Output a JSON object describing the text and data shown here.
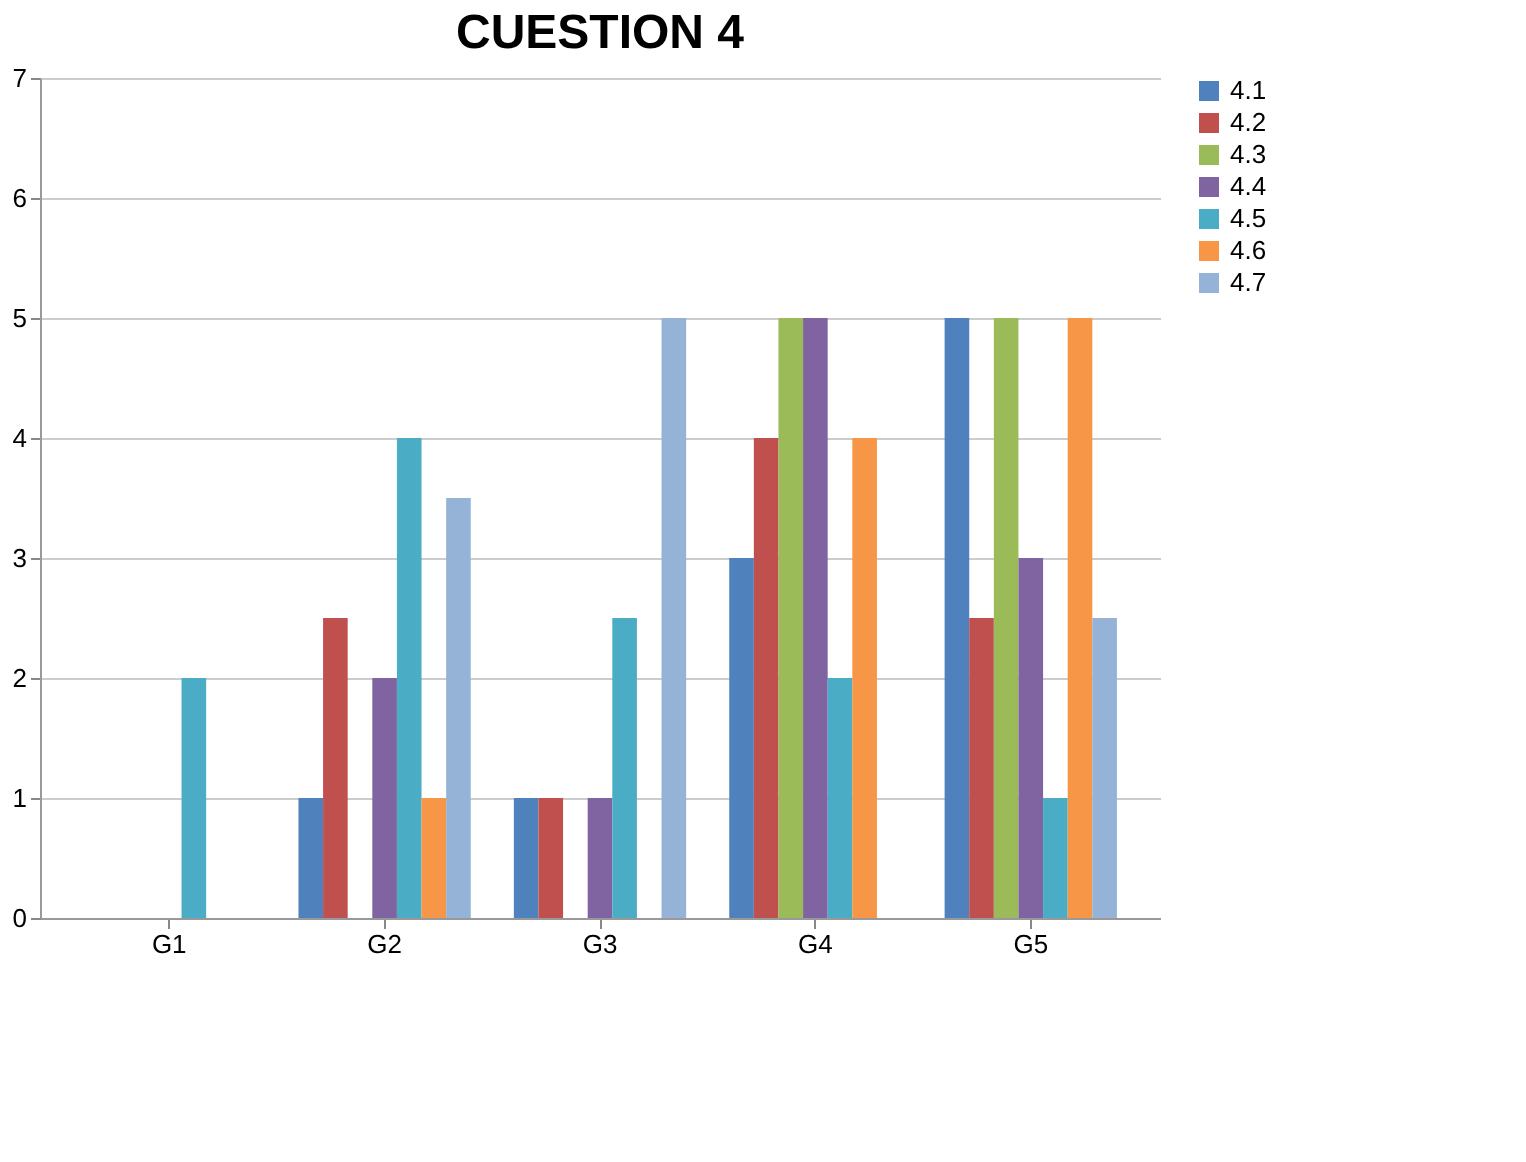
{
  "chart_data": {
    "type": "bar",
    "title": "CUESTION 4",
    "categories": [
      "G1",
      "G2",
      "G3",
      "G4",
      "G5"
    ],
    "series": [
      {
        "name": "4.1",
        "color": "#4f81bd",
        "values": [
          0,
          1,
          1,
          3,
          5
        ]
      },
      {
        "name": "4.2",
        "color": "#c0504d",
        "values": [
          0,
          2.5,
          1,
          4,
          2.5
        ]
      },
      {
        "name": "4.3",
        "color": "#9bbb59",
        "values": [
          0,
          0,
          0,
          5,
          5
        ]
      },
      {
        "name": "4.4",
        "color": "#8064a2",
        "values": [
          0,
          2,
          1,
          5,
          3
        ]
      },
      {
        "name": "4.5",
        "color": "#4bacc6",
        "values": [
          2,
          4,
          2.5,
          2,
          1
        ]
      },
      {
        "name": "4.6",
        "color": "#f79646",
        "values": [
          0,
          1,
          0,
          4,
          5
        ]
      },
      {
        "name": "4.7",
        "color": "#95b3d7",
        "values": [
          0,
          3.5,
          5,
          0,
          2.5
        ]
      }
    ],
    "ylim": [
      0,
      7
    ],
    "yticks": [
      0,
      1,
      2,
      3,
      4,
      5,
      6,
      7
    ],
    "grid": "y",
    "legend": "right"
  }
}
